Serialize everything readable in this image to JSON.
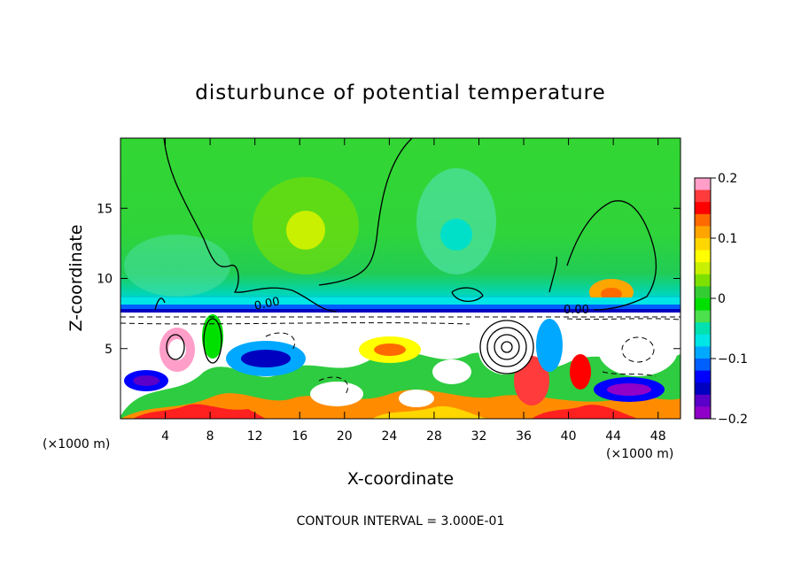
{
  "chart_data": {
    "type": "heatmap",
    "title": "disturbunce of potential temperature",
    "xlabel": "X-coordinate",
    "ylabel": "Z-coordinate",
    "x_unit": "(×1000 m)",
    "x_unit_right": "(×1000 m)",
    "x_ticks": [
      4,
      8,
      12,
      16,
      20,
      24,
      28,
      32,
      36,
      40,
      44,
      48
    ],
    "y_ticks": [
      5,
      10,
      15
    ],
    "xlim": [
      0,
      50
    ],
    "ylim": [
      0,
      20
    ],
    "colorbar": {
      "ticks": [
        0.2,
        0.1,
        0,
        -0.1,
        -0.2
      ],
      "range": [
        -0.2,
        0.2
      ],
      "colors": [
        "#ff9ec8",
        "#ff3b3b",
        "#ff0000",
        "#ff6a00",
        "#ffa500",
        "#ffd700",
        "#ffff00",
        "#c8f000",
        "#7ee000",
        "#33cc33",
        "#00e000",
        "#4ce04c",
        "#00e0b0",
        "#00e5e5",
        "#00a8ff",
        "#0060ff",
        "#0000ff",
        "#0000c0",
        "#5a00c8",
        "#9000c8"
      ]
    },
    "contour_label": "0.00",
    "annotation": "CONTOUR INTERVAL = 3.000E-01"
  }
}
